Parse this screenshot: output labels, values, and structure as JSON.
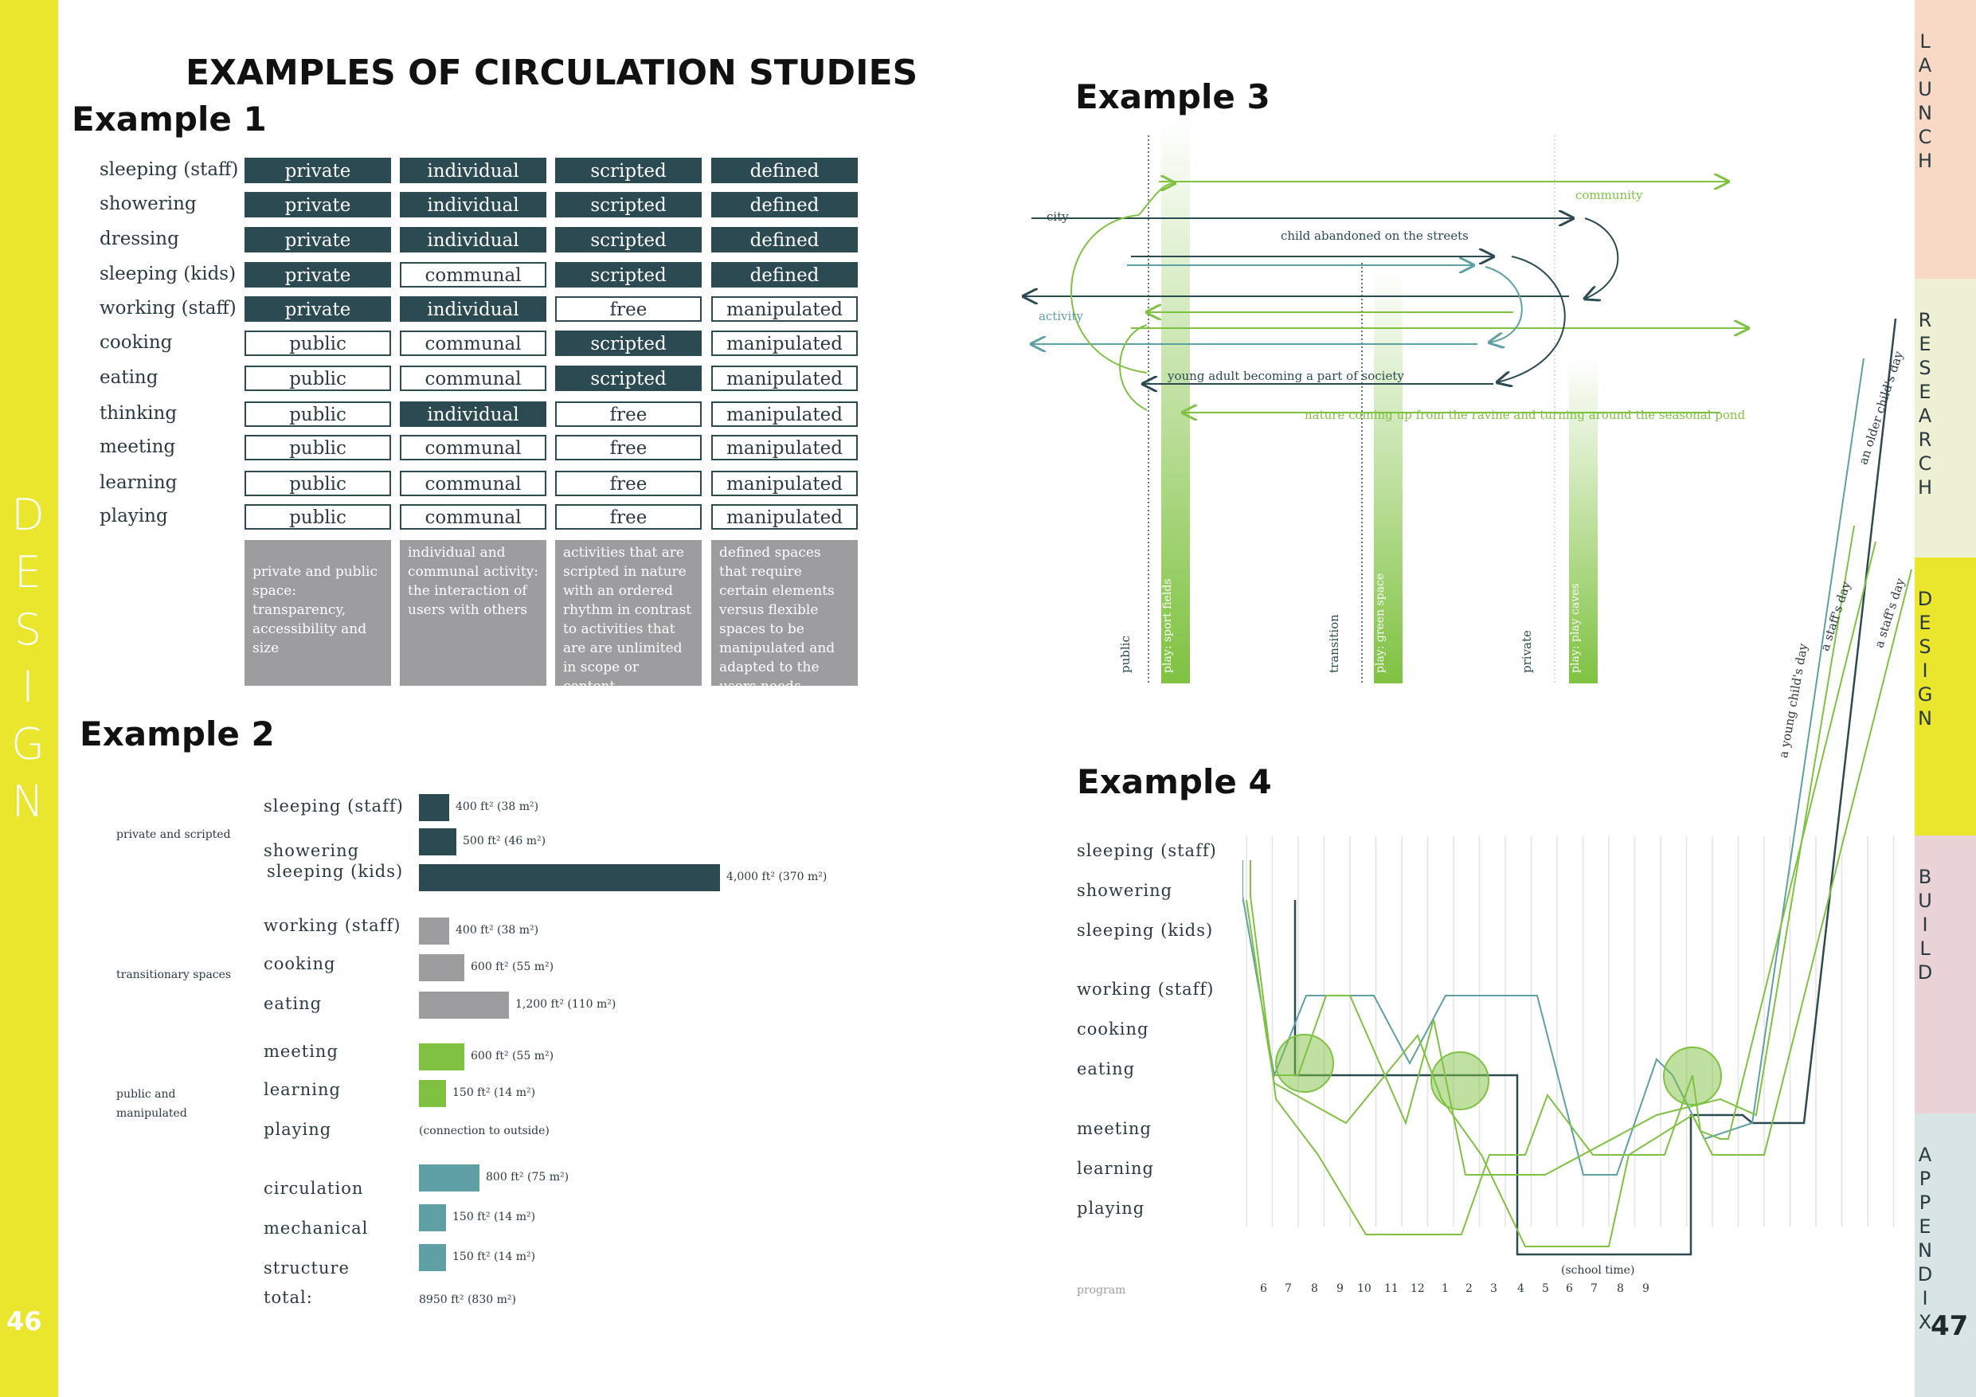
{
  "left_band": {
    "word_letters": [
      "D",
      "E",
      "S",
      "I",
      "G",
      "N"
    ],
    "page_number": "46"
  },
  "right_tabs": [
    {
      "name": "launch",
      "letters": [
        "L",
        "A",
        "U",
        "N",
        "C",
        "H"
      ],
      "color": "#f8d9c6"
    },
    {
      "name": "research",
      "letters": [
        "R",
        "E",
        "S",
        "E",
        "A",
        "R",
        "C",
        "H"
      ],
      "color": "#eef0d3"
    },
    {
      "name": "design",
      "letters": [
        "D",
        "E",
        "S",
        "I",
        "G",
        "N"
      ],
      "color": "#e9e62d"
    },
    {
      "name": "build",
      "letters": [
        "B",
        "U",
        "I",
        "L",
        "D"
      ],
      "color": "#ead3d6"
    },
    {
      "name": "appendix",
      "letters": [
        "A",
        "P",
        "P",
        "E",
        "N",
        "D",
        "I",
        "X"
      ],
      "color": "#d8e4e6"
    }
  ],
  "page_number_right": "47",
  "title": "EXAMPLES OF CIRCULATION STUDIES",
  "example1": {
    "heading": "Example 1",
    "rows": [
      {
        "label": "sleeping (staff)",
        "cells": [
          [
            "private",
            "dark"
          ],
          [
            "individual",
            "dark"
          ],
          [
            "scripted",
            "dark"
          ],
          [
            "defined",
            "dark"
          ]
        ]
      },
      {
        "label": "showering",
        "cells": [
          [
            "private",
            "dark"
          ],
          [
            "individual",
            "dark"
          ],
          [
            "scripted",
            "dark"
          ],
          [
            "defined",
            "dark"
          ]
        ]
      },
      {
        "label": "dressing",
        "cells": [
          [
            "private",
            "dark"
          ],
          [
            "individual",
            "dark"
          ],
          [
            "scripted",
            "dark"
          ],
          [
            "defined",
            "dark"
          ]
        ]
      },
      {
        "label": "sleeping (kids)",
        "cells": [
          [
            "private",
            "dark"
          ],
          [
            "communal",
            "light"
          ],
          [
            "scripted",
            "dark"
          ],
          [
            "defined",
            "dark"
          ]
        ]
      },
      {
        "label": "working (staff)",
        "cells": [
          [
            "private",
            "dark"
          ],
          [
            "individual",
            "dark"
          ],
          [
            "free",
            "light"
          ],
          [
            "manipulated",
            "light"
          ]
        ]
      },
      {
        "label": "cooking",
        "cells": [
          [
            "public",
            "light"
          ],
          [
            "communal",
            "light"
          ],
          [
            "scripted",
            "dark"
          ],
          [
            "manipulated",
            "light"
          ]
        ]
      },
      {
        "label": "eating",
        "cells": [
          [
            "public",
            "light"
          ],
          [
            "communal",
            "light"
          ],
          [
            "scripted",
            "dark"
          ],
          [
            "manipulated",
            "light"
          ]
        ]
      },
      {
        "label": "thinking",
        "cells": [
          [
            "public",
            "light"
          ],
          [
            "individual",
            "dark"
          ],
          [
            "free",
            "light"
          ],
          [
            "manipulated",
            "light"
          ]
        ]
      },
      {
        "label": "meeting",
        "cells": [
          [
            "public",
            "light"
          ],
          [
            "communal",
            "light"
          ],
          [
            "free",
            "light"
          ],
          [
            "manipulated",
            "light"
          ]
        ]
      },
      {
        "label": "learning",
        "cells": [
          [
            "public",
            "light"
          ],
          [
            "communal",
            "light"
          ],
          [
            "free",
            "light"
          ],
          [
            "manipulated",
            "light"
          ]
        ]
      },
      {
        "label": "playing",
        "cells": [
          [
            "public",
            "light"
          ],
          [
            "communal",
            "light"
          ],
          [
            "free",
            "light"
          ],
          [
            "manipulated",
            "light"
          ]
        ]
      }
    ],
    "descriptions": [
      "private and public space: transparency, accessibility and size",
      "individual and communal activity: the interaction of users with others",
      "activities that are scripted in nature with an ordered rhythm in contrast to activities that are are unlimited in scope or content",
      "defined spaces that require certain elements versus flexible spaces to be manipulated and adapted to the users needs"
    ]
  },
  "example2": {
    "heading": "Example 2",
    "groups": [
      "private and scripted",
      "transitionary spaces",
      "public and manipulated"
    ],
    "items": [
      {
        "label": "sleeping (staff)",
        "area": "400 ft² (38 m²)",
        "sqft": 400,
        "color": "#2b4a52"
      },
      {
        "label": "showering",
        "area": "500 ft² (46 m²)",
        "sqft": 500,
        "color": "#2b4a52"
      },
      {
        "label": "sleeping (kids)",
        "area": "4,000 ft² (370 m²)",
        "sqft": 4000,
        "color": "#2b4a52"
      },
      {
        "label": "working (staff)",
        "area": "400 ft² (38 m²)",
        "sqft": 400,
        "color": "#9d9d9f"
      },
      {
        "label": "cooking",
        "area": "600 ft² (55 m²)",
        "sqft": 600,
        "color": "#9d9d9f"
      },
      {
        "label": "eating",
        "area": "1,200 ft² (110 m²)",
        "sqft": 1200,
        "color": "#9d9d9f"
      },
      {
        "label": "meeting",
        "area": "600 ft² (55 m²)",
        "sqft": 600,
        "color": "#7fc241"
      },
      {
        "label": "learning",
        "area": "150 ft² (14 m²)",
        "sqft": 150,
        "color": "#7fc241"
      },
      {
        "label": "playing",
        "area": "(connection to outside)",
        "sqft": 0,
        "color": "#7fc241"
      },
      {
        "label": "circulation",
        "area": "800 ft² (75 m²)",
        "sqft": 800,
        "color": "#5fa0a4"
      },
      {
        "label": "mechanical",
        "area": "150 ft² (14 m²)",
        "sqft": 150,
        "color": "#5fa0a4"
      },
      {
        "label": "structure",
        "area": "150 ft² (14 m²)",
        "sqft": 150,
        "color": "#5fa0a4"
      }
    ],
    "total_label": "total:",
    "total_value": "8950 ft² (830 m²)"
  },
  "example3": {
    "heading": "Example 3",
    "labels": {
      "community": "community",
      "city": "city",
      "child": "child abandoned on the streets",
      "activity": "activity",
      "young_adult": "young adult becoming a part of society",
      "nature": "nature coming up from the ravine and turning around the seasonal pond"
    },
    "zones": [
      "public",
      "transition",
      "private"
    ],
    "plays": [
      "play: sport fields",
      "play: green space",
      "play: play caves"
    ],
    "colors": {
      "dark": "#2b4a52",
      "green": "#7fc241",
      "teal": "#5fa0a4"
    }
  },
  "example4": {
    "heading": "Example 4",
    "rows": [
      "sleeping (staff)",
      "showering",
      "sleeping (kids)",
      "working (staff)",
      "cooking",
      "eating",
      "meeting",
      "learning",
      "playing"
    ],
    "program_label": "program",
    "hours": [
      "6",
      "7",
      "8",
      "9",
      "10",
      "11",
      "12",
      "1",
      "2",
      "3",
      "4",
      "5",
      "6",
      "7",
      "8",
      "9"
    ],
    "school_time": "(school time)",
    "series": [
      "an older child's day",
      "a staff's day",
      "a staff's day",
      "a young child's day"
    ]
  }
}
